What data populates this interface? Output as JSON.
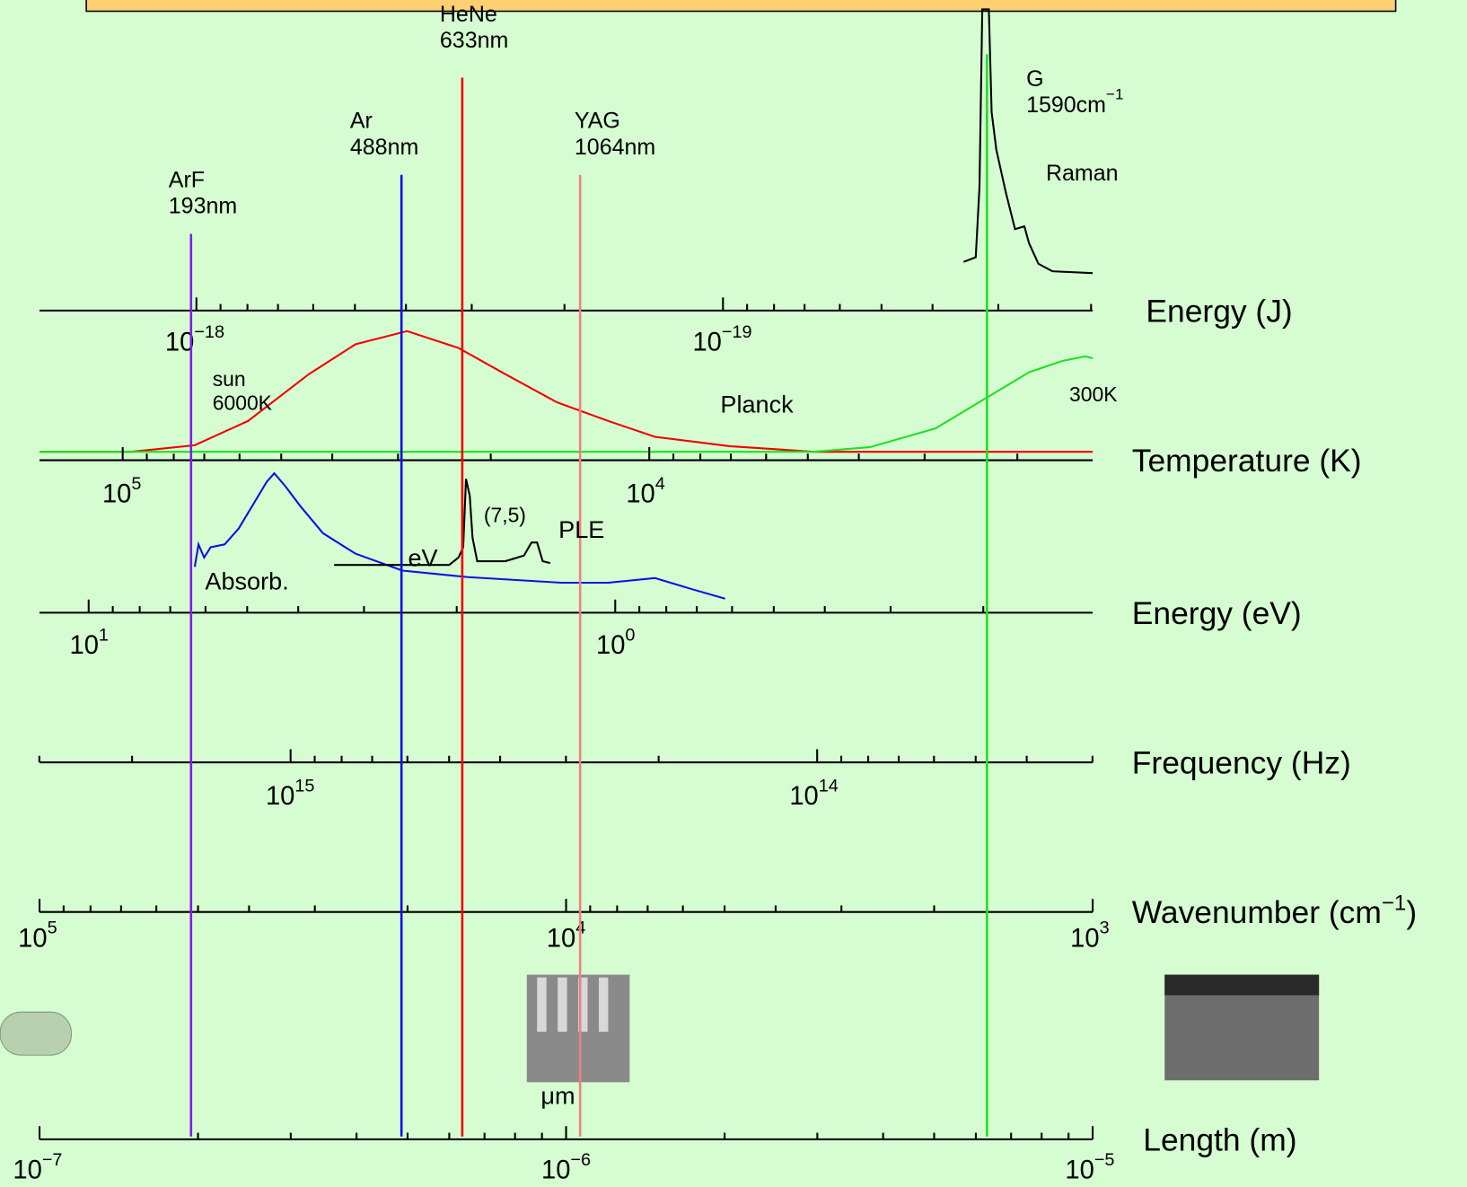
{
  "axes": [
    {
      "label": "Energy (J)",
      "ticks": [
        {
          "base": "10",
          "exp": "−18"
        },
        {
          "base": "10",
          "exp": "−19"
        }
      ]
    },
    {
      "label": "Temperature (K)",
      "ticks": [
        {
          "base": "10",
          "exp": "5"
        },
        {
          "base": "10",
          "exp": "4"
        }
      ]
    },
    {
      "label": "Energy (eV)",
      "ticks": [
        {
          "base": "10",
          "exp": "1"
        },
        {
          "base": "10",
          "exp": "0"
        }
      ]
    },
    {
      "label": "Frequency (Hz)",
      "ticks": [
        {
          "base": "10",
          "exp": "15"
        },
        {
          "base": "10",
          "exp": "14"
        }
      ]
    },
    {
      "label": "Wavenumber (cm",
      "label_exp": "−1",
      "label_end": ")",
      "ticks": [
        {
          "base": "10",
          "exp": "5"
        },
        {
          "base": "10",
          "exp": "4"
        },
        {
          "base": "10",
          "exp": "3"
        }
      ]
    },
    {
      "label": "Length (m)",
      "ticks": [
        {
          "base": "10",
          "exp": "−7"
        },
        {
          "base": "10",
          "exp": "−6"
        },
        {
          "base": "10",
          "exp": "−5"
        }
      ]
    }
  ],
  "lasers": [
    {
      "name": "ArF",
      "wavelength": "193nm"
    },
    {
      "name": "Ar",
      "wavelength": "488nm"
    },
    {
      "name": "HeNe",
      "wavelength": "633nm"
    },
    {
      "name": "YAG",
      "wavelength": "1064nm"
    }
  ],
  "raman": {
    "peak": "G",
    "shift": "1590cm",
    "shift_exp": "−1",
    "label": "Raman"
  },
  "annotations": {
    "sun": "sun",
    "sun_temp": "6000K",
    "planck": "Planck",
    "room": "300K",
    "chirality": "(7,5)",
    "ple": "PLE",
    "ev": "eV",
    "absorb": "Absorb.",
    "micron": "μm"
  }
}
